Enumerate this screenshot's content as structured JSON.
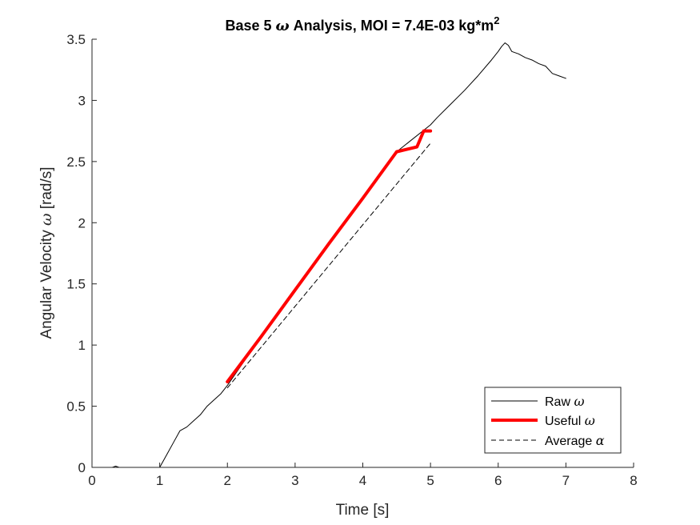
{
  "chart_data": {
    "type": "line",
    "title": {
      "prefix": "Base 5 ",
      "symbol": "ω",
      "suffix": " Analysis, MOI = 7.4E-03 kg*m",
      "superscript": "2"
    },
    "xlabel": "Time [s]",
    "ylabel": {
      "text": "Angular Velocity ",
      "symbol": "ω",
      "unit": " [rad/s]"
    },
    "xlim": [
      0,
      8
    ],
    "ylim": [
      0,
      3.5
    ],
    "xticks": [
      0,
      1,
      2,
      3,
      4,
      5,
      6,
      7,
      8
    ],
    "xtick_labels": [
      "0",
      "1",
      "2",
      "3",
      "4",
      "5",
      "6",
      "7",
      "8"
    ],
    "yticks": [
      0,
      0.5,
      1,
      1.5,
      2,
      2.5,
      3,
      3.5
    ],
    "ytick_labels": [
      "0",
      "0.5",
      "1",
      "1.5",
      "2",
      "2.5",
      "3",
      "3.5"
    ],
    "grid": false,
    "legend_position": "bottom-right",
    "series": [
      {
        "name": "Raw ω",
        "legend_text": "Raw ",
        "legend_symbol": "ω",
        "color": "#000000",
        "style": "solid",
        "x": [
          0,
          0.3,
          0.35,
          0.4,
          1.0,
          1.1,
          1.2,
          1.3,
          1.4,
          1.5,
          1.6,
          1.7,
          1.8,
          1.9,
          2.0,
          2.2,
          2.5,
          3.0,
          3.5,
          4.0,
          4.5,
          5.0,
          5.1,
          5.3,
          5.5,
          5.7,
          5.9,
          6.0,
          6.05,
          6.1,
          6.15,
          6.2,
          6.3,
          6.4,
          6.5,
          6.6,
          6.7,
          6.8,
          6.9,
          7.0
        ],
        "y": [
          0,
          0,
          0.01,
          0,
          0,
          0.1,
          0.2,
          0.3,
          0.33,
          0.38,
          0.43,
          0.5,
          0.55,
          0.6,
          0.67,
          0.83,
          1.07,
          1.45,
          1.83,
          2.2,
          2.58,
          2.8,
          2.86,
          2.97,
          3.08,
          3.2,
          3.33,
          3.4,
          3.44,
          3.47,
          3.45,
          3.4,
          3.38,
          3.35,
          3.33,
          3.3,
          3.28,
          3.22,
          3.2,
          3.18
        ]
      },
      {
        "name": "Useful ω",
        "legend_text": "Useful ",
        "legend_symbol": "ω",
        "color": "#ff0000",
        "style": "thick",
        "x": [
          2.0,
          2.5,
          3.0,
          3.5,
          4.0,
          4.5,
          4.8,
          4.9,
          5.0
        ],
        "y": [
          0.7,
          1.07,
          1.45,
          1.83,
          2.2,
          2.58,
          2.62,
          2.75,
          2.75
        ]
      },
      {
        "name": "Average α",
        "legend_text": "Average ",
        "legend_symbol": "α",
        "color": "#000000",
        "style": "dashed",
        "x": [
          2.0,
          5.0
        ],
        "y": [
          0.65,
          2.65
        ]
      }
    ]
  }
}
